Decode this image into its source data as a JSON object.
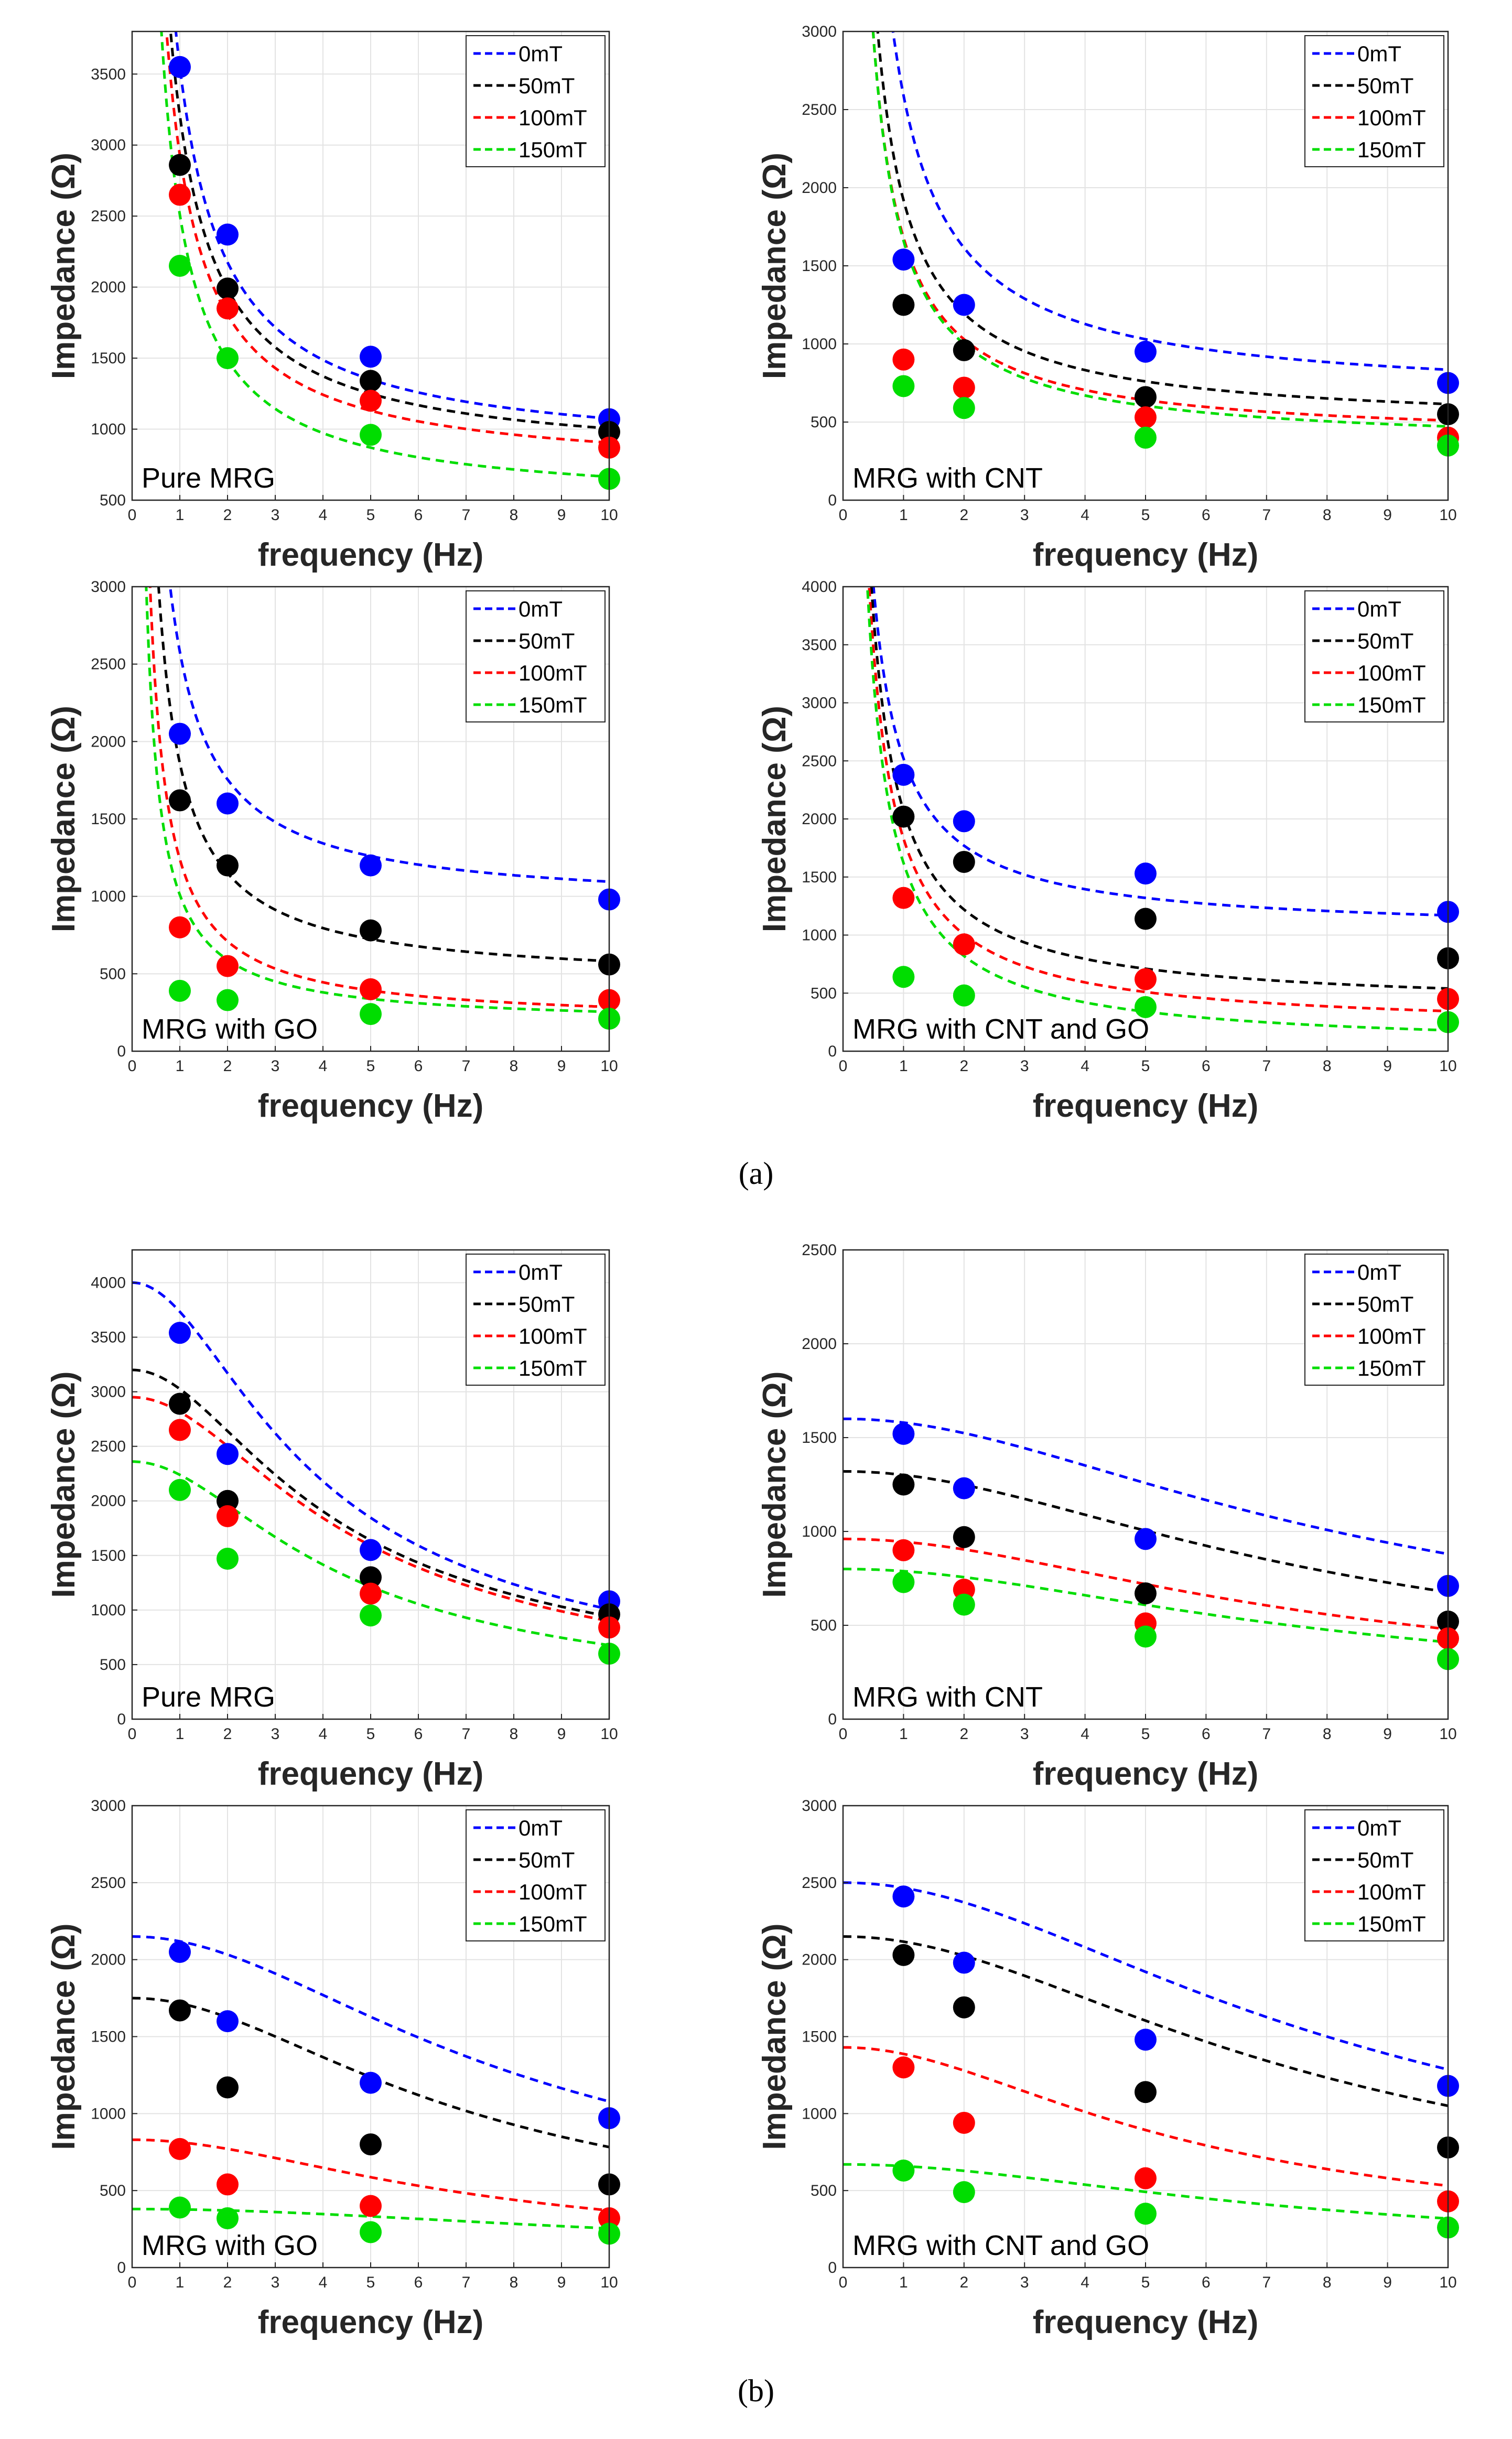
{
  "figure": {
    "caption_a": "(a)",
    "caption_b": "(b)"
  },
  "colors": {
    "0mT": "#0000ff",
    "50mT": "#000000",
    "100mT": "#ff0000",
    "150mT": "#00dd00"
  },
  "chart_data": [
    {
      "id": "a1",
      "group": "a",
      "type": "scatter",
      "panel_label": "Pure MRG",
      "xlabel": "frequency (Hz)",
      "ylabel": "Impedance (Ω)",
      "xlim": [
        0,
        10
      ],
      "ylim": [
        500,
        3800
      ],
      "xticks": [
        0,
        1,
        2,
        3,
        4,
        5,
        6,
        7,
        8,
        9,
        10
      ],
      "yticks": [
        500,
        1000,
        1500,
        2000,
        2500,
        3000,
        3500
      ],
      "grid": true,
      "legend": "top-right",
      "x": [
        1,
        2,
        5,
        10
      ],
      "series": [
        {
          "name": "0mT",
          "values": [
            3550,
            2370,
            1510,
            1070
          ],
          "fit": {
            "kind": "hyperbolic",
            "a": 2750,
            "b": 800
          }
        },
        {
          "name": "50mT",
          "values": [
            2860,
            1990,
            1340,
            980
          ],
          "fit": {
            "kind": "hyperbolic",
            "a": 2450,
            "b": 760
          }
        },
        {
          "name": "100mT",
          "values": [
            2650,
            1850,
            1200,
            870
          ],
          "fit": {
            "kind": "hyperbolic",
            "a": 2250,
            "b": 680
          }
        },
        {
          "name": "150mT",
          "values": [
            2150,
            1500,
            960,
            650
          ],
          "fit": {
            "kind": "hyperbolic",
            "a": 2050,
            "b": 460
          }
        }
      ]
    },
    {
      "id": "a2",
      "group": "a",
      "type": "scatter",
      "panel_label": "MRG with CNT",
      "xlabel": "frequency (Hz)",
      "ylabel": "Impedance (Ω)",
      "xlim": [
        0,
        10
      ],
      "ylim": [
        0,
        3000
      ],
      "xticks": [
        0,
        1,
        2,
        3,
        4,
        5,
        6,
        7,
        8,
        9,
        10
      ],
      "yticks": [
        0,
        500,
        1000,
        1500,
        2000,
        2500,
        3000
      ],
      "grid": true,
      "legend": "top-right",
      "x": [
        1,
        2,
        5,
        10
      ],
      "series": [
        {
          "name": "0mT",
          "values": [
            1540,
            1250,
            950,
            750
          ],
          "fit": {
            "kind": "hyperbolic",
            "a": 1950,
            "b": 640
          }
        },
        {
          "name": "50mT",
          "values": [
            1250,
            960,
            660,
            550
          ],
          "fit": {
            "kind": "hyperbolic",
            "a": 1450,
            "b": 470
          }
        },
        {
          "name": "100mT",
          "values": [
            900,
            720,
            530,
            400
          ],
          "fit": {
            "kind": "hyperbolic",
            "a": 1300,
            "b": 380
          }
        },
        {
          "name": "150mT",
          "values": [
            730,
            590,
            400,
            350
          ],
          "fit": {
            "kind": "hyperbolic",
            "a": 1320,
            "b": 340
          }
        }
      ]
    },
    {
      "id": "a3",
      "group": "a",
      "type": "scatter",
      "panel_label": "MRG with GO",
      "xlabel": "frequency (Hz)",
      "ylabel": "Impedance (Ω)",
      "xlim": [
        0,
        10
      ],
      "ylim": [
        0,
        3000
      ],
      "xticks": [
        0,
        1,
        2,
        3,
        4,
        5,
        6,
        7,
        8,
        9,
        10
      ],
      "yticks": [
        0,
        500,
        1000,
        1500,
        2000,
        2500,
        3000
      ],
      "grid": true,
      "legend": "top-right",
      "x": [
        1,
        2,
        5,
        10
      ],
      "series": [
        {
          "name": "0mT",
          "values": [
            2050,
            1600,
            1200,
            980
          ],
          "fit": {
            "kind": "hyperbolic",
            "a": 1650,
            "b": 930
          }
        },
        {
          "name": "50mT",
          "values": [
            1620,
            1200,
            780,
            560
          ],
          "fit": {
            "kind": "hyperbolic",
            "a": 1420,
            "b": 440
          }
        },
        {
          "name": "100mT",
          "values": [
            800,
            550,
            400,
            330
          ],
          "fit": {
            "kind": "hyperbolic",
            "a": 1060,
            "b": 180
          }
        },
        {
          "name": "150mT",
          "values": [
            390,
            330,
            240,
            210
          ],
          "fit": {
            "kind": "hyperbolic",
            "a": 840,
            "b": 170
          }
        }
      ]
    },
    {
      "id": "a4",
      "group": "a",
      "type": "scatter",
      "panel_label": "MRG with CNT and GO",
      "xlabel": "frequency (Hz)",
      "ylabel": "Impedance (Ω)",
      "xlim": [
        0,
        10
      ],
      "ylim": [
        0,
        4000
      ],
      "xticks": [
        0,
        1,
        2,
        3,
        4,
        5,
        6,
        7,
        8,
        9,
        10
      ],
      "yticks": [
        0,
        500,
        1000,
        1500,
        2000,
        2500,
        3000,
        3500,
        4000
      ],
      "grid": true,
      "legend": "top-right",
      "x": [
        1,
        2,
        5,
        10
      ],
      "series": [
        {
          "name": "0mT",
          "values": [
            2380,
            1980,
            1530,
            1200
          ],
          "fit": {
            "kind": "hyperbolic",
            "a": 1500,
            "b": 1020
          }
        },
        {
          "name": "50mT",
          "values": [
            2020,
            1630,
            1140,
            800
          ],
          "fit": {
            "kind": "hyperbolic",
            "a": 1700,
            "b": 370
          }
        },
        {
          "name": "100mT",
          "values": [
            1320,
            920,
            620,
            450
          ],
          "fit": {
            "kind": "hyperbolic",
            "a": 1650,
            "b": 180
          }
        },
        {
          "name": "150mT",
          "values": [
            640,
            480,
            380,
            250
          ],
          "fit": {
            "kind": "hyperbolic",
            "a": 1600,
            "b": 20
          }
        }
      ]
    },
    {
      "id": "b1",
      "group": "b",
      "type": "scatter",
      "panel_label": "Pure MRG",
      "xlabel": "frequency (Hz)",
      "ylabel": "Impedance (Ω)",
      "xlim": [
        0,
        10
      ],
      "ylim": [
        0,
        4300
      ],
      "xticks": [
        0,
        1,
        2,
        3,
        4,
        5,
        6,
        7,
        8,
        9,
        10
      ],
      "yticks": [
        0,
        500,
        1000,
        1500,
        2000,
        2500,
        3000,
        3500,
        4000
      ],
      "grid": true,
      "legend": "top-right",
      "x": [
        1,
        2,
        5,
        10
      ],
      "series": [
        {
          "name": "0mT",
          "values": [
            3540,
            2430,
            1550,
            1080
          ],
          "fit": {
            "kind": "lorentz",
            "z0": 4000,
            "f0": 2.6,
            "n": 1.5
          }
        },
        {
          "name": "50mT",
          "values": [
            2890,
            2000,
            1300,
            960
          ],
          "fit": {
            "kind": "lorentz",
            "z0": 3200,
            "f0": 2.8,
            "n": 1.4
          }
        },
        {
          "name": "100mT",
          "values": [
            2650,
            1860,
            1150,
            840
          ],
          "fit": {
            "kind": "lorentz",
            "z0": 2950,
            "f0": 3.2,
            "n": 1.5
          }
        },
        {
          "name": "150mT",
          "values": [
            2100,
            1470,
            950,
            600
          ],
          "fit": {
            "kind": "lorentz",
            "z0": 2360,
            "f0": 3.0,
            "n": 1.5
          }
        }
      ]
    },
    {
      "id": "b2",
      "group": "b",
      "type": "scatter",
      "panel_label": "MRG with CNT",
      "xlabel": "frequency (Hz)",
      "ylabel": "Impedance (Ω)",
      "xlim": [
        0,
        10
      ],
      "ylim": [
        0,
        2500
      ],
      "xticks": [
        0,
        1,
        2,
        3,
        4,
        5,
        6,
        7,
        8,
        9,
        10
      ],
      "yticks": [
        0,
        500,
        1000,
        1500,
        2000,
        2500
      ],
      "grid": true,
      "legend": "top-right",
      "x": [
        1,
        2,
        5,
        10
      ],
      "series": [
        {
          "name": "0mT",
          "values": [
            1520,
            1230,
            960,
            710
          ],
          "fit": {
            "kind": "lorentz",
            "z0": 1600,
            "f0": 5.8,
            "n": 1.3
          }
        },
        {
          "name": "50mT",
          "values": [
            1250,
            970,
            670,
            520
          ],
          "fit": {
            "kind": "lorentz",
            "z0": 1320,
            "f0": 5.6,
            "n": 1.4
          }
        },
        {
          "name": "100mT",
          "values": [
            900,
            690,
            510,
            430
          ],
          "fit": {
            "kind": "lorentz",
            "z0": 960,
            "f0": 5.4,
            "n": 1.4
          }
        },
        {
          "name": "150mT",
          "values": [
            730,
            610,
            440,
            320
          ],
          "fit": {
            "kind": "lorentz",
            "z0": 800,
            "f0": 5.6,
            "n": 1.4
          }
        }
      ]
    },
    {
      "id": "b3",
      "group": "b",
      "type": "scatter",
      "panel_label": "MRG with GO",
      "xlabel": "frequency (Hz)",
      "ylabel": "Impedance (Ω)",
      "xlim": [
        0,
        10
      ],
      "ylim": [
        0,
        3000
      ],
      "xticks": [
        0,
        1,
        2,
        3,
        4,
        5,
        6,
        7,
        8,
        9,
        10
      ],
      "yticks": [
        0,
        500,
        1000,
        1500,
        2000,
        2500,
        3000
      ],
      "grid": true,
      "legend": "top-right",
      "x": [
        1,
        2,
        5,
        10
      ],
      "series": [
        {
          "name": "0mT",
          "values": [
            2050,
            1600,
            1200,
            970
          ],
          "fit": {
            "kind": "lorentz",
            "z0": 2150,
            "f0": 5.8,
            "n": 1.5
          }
        },
        {
          "name": "50mT",
          "values": [
            1670,
            1170,
            800,
            540
          ],
          "fit": {
            "kind": "lorentz",
            "z0": 1750,
            "f0": 5.0,
            "n": 1.5
          }
        },
        {
          "name": "100mT",
          "values": [
            770,
            540,
            400,
            320
          ],
          "fit": {
            "kind": "lorentz",
            "z0": 830,
            "f0": 5.0,
            "n": 1.5
          }
        },
        {
          "name": "150mT",
          "values": [
            390,
            320,
            230,
            220
          ],
          "fit": {
            "kind": "lorentz",
            "z0": 380,
            "f0": 9.0,
            "n": 1.5
          }
        }
      ]
    },
    {
      "id": "b4",
      "group": "b",
      "type": "scatter",
      "panel_label": "MRG with CNT and GO",
      "xlabel": "frequency (Hz)",
      "ylabel": "Impedance (Ω)",
      "xlim": [
        0,
        10
      ],
      "ylim": [
        0,
        3000
      ],
      "xticks": [
        0,
        1,
        2,
        3,
        4,
        5,
        6,
        7,
        8,
        9,
        10
      ],
      "yticks": [
        0,
        500,
        1000,
        1500,
        2000,
        2500,
        3000
      ],
      "grid": true,
      "legend": "top-right",
      "x": [
        1,
        2,
        5,
        10
      ],
      "series": [
        {
          "name": "0mT",
          "values": [
            2410,
            1980,
            1480,
            1180
          ],
          "fit": {
            "kind": "lorentz",
            "z0": 2500,
            "f0": 6.0,
            "n": 1.5
          }
        },
        {
          "name": "50mT",
          "values": [
            2030,
            1690,
            1140,
            780
          ],
          "fit": {
            "kind": "lorentz",
            "z0": 2150,
            "f0": 5.6,
            "n": 1.5
          }
        },
        {
          "name": "100mT",
          "values": [
            1300,
            940,
            580,
            430
          ],
          "fit": {
            "kind": "lorentz",
            "z0": 1430,
            "f0": 4.0,
            "n": 1.5
          }
        },
        {
          "name": "150mT",
          "values": [
            630,
            490,
            350,
            260
          ],
          "fit": {
            "kind": "lorentz",
            "z0": 670,
            "f0": 5.4,
            "n": 1.5
          }
        }
      ]
    }
  ]
}
